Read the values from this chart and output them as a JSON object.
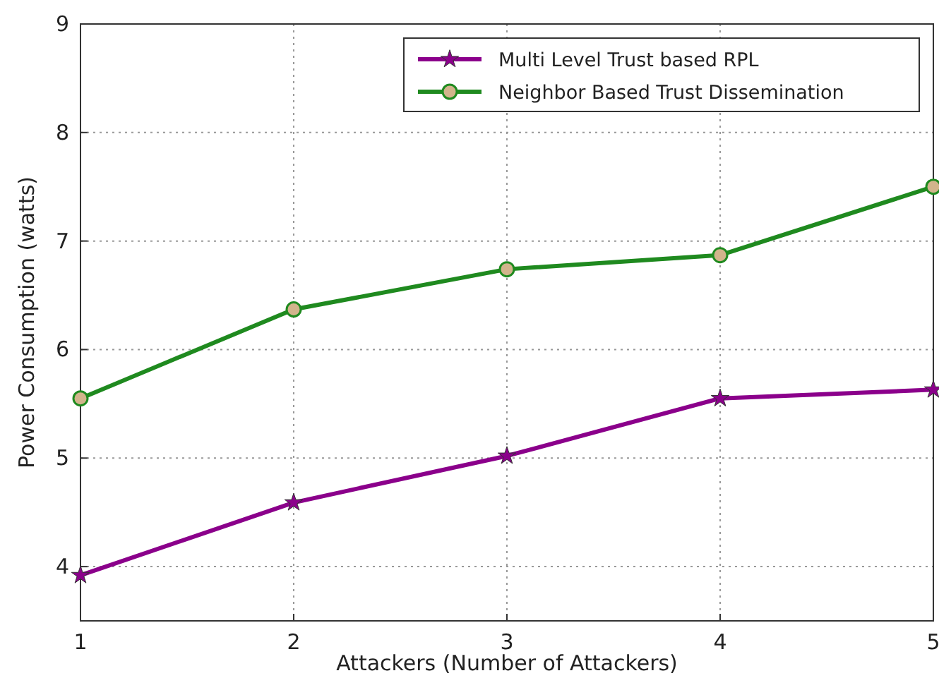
{
  "chart_data": {
    "type": "line",
    "xlabel": "Attackers (Number of Attackers)",
    "ylabel": "Power Consumption (watts)",
    "x": [
      1,
      2,
      3,
      4,
      5
    ],
    "series": [
      {
        "name": "Multi Level Trust based RPL",
        "color": "#8b008b",
        "marker": "star",
        "values": [
          3.92,
          4.59,
          5.02,
          5.55,
          5.63
        ]
      },
      {
        "name": "Neighbor Based Trust Dissemination",
        "color": "#1f8a1f",
        "marker": "circle",
        "values": [
          5.55,
          6.37,
          6.74,
          6.87,
          7.5
        ]
      }
    ],
    "xlim": [
      1,
      5
    ],
    "xticks": [
      1,
      2,
      3,
      4,
      5
    ],
    "ylim": [
      3.5,
      9
    ],
    "yticks": [
      4,
      5,
      6,
      7,
      8,
      9
    ],
    "grid": true,
    "legend": "top right",
    "line_style": "solid"
  }
}
